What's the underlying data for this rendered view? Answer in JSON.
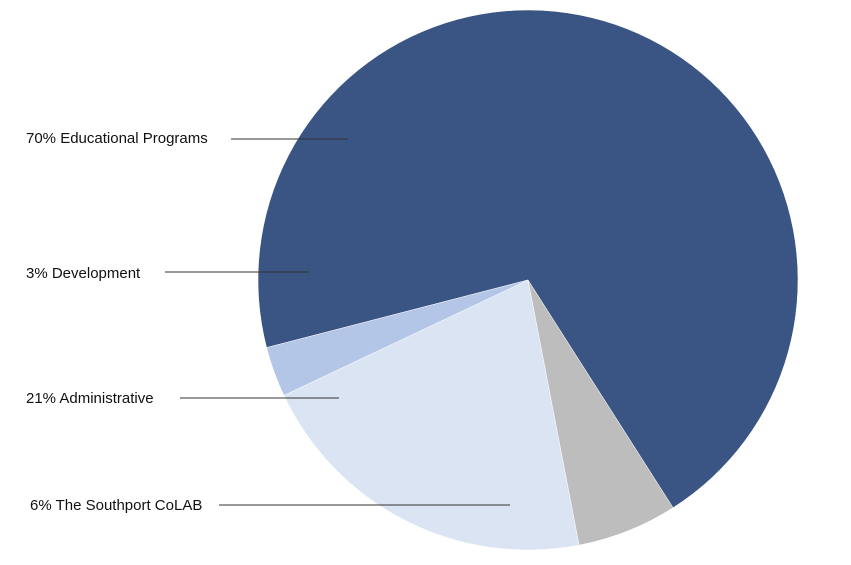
{
  "chart_data": {
    "type": "pie",
    "title": "",
    "slices": [
      {
        "label": "Educational Programs",
        "value": 70,
        "color": "#3a5583",
        "text": "70% Educational Programs"
      },
      {
        "label": "The Southport CoLAB",
        "value": 6,
        "color": "#bdbdbd",
        "text": "6% The Southport CoLAB"
      },
      {
        "label": "Administrative",
        "value": 21,
        "color": "#dbe4f3",
        "text": "21% Administrative"
      },
      {
        "label": "Development",
        "value": 3,
        "color": "#b3c6e7",
        "text": "3% Development"
      }
    ],
    "legend": "none",
    "labels": "outside-left with leader lines"
  }
}
